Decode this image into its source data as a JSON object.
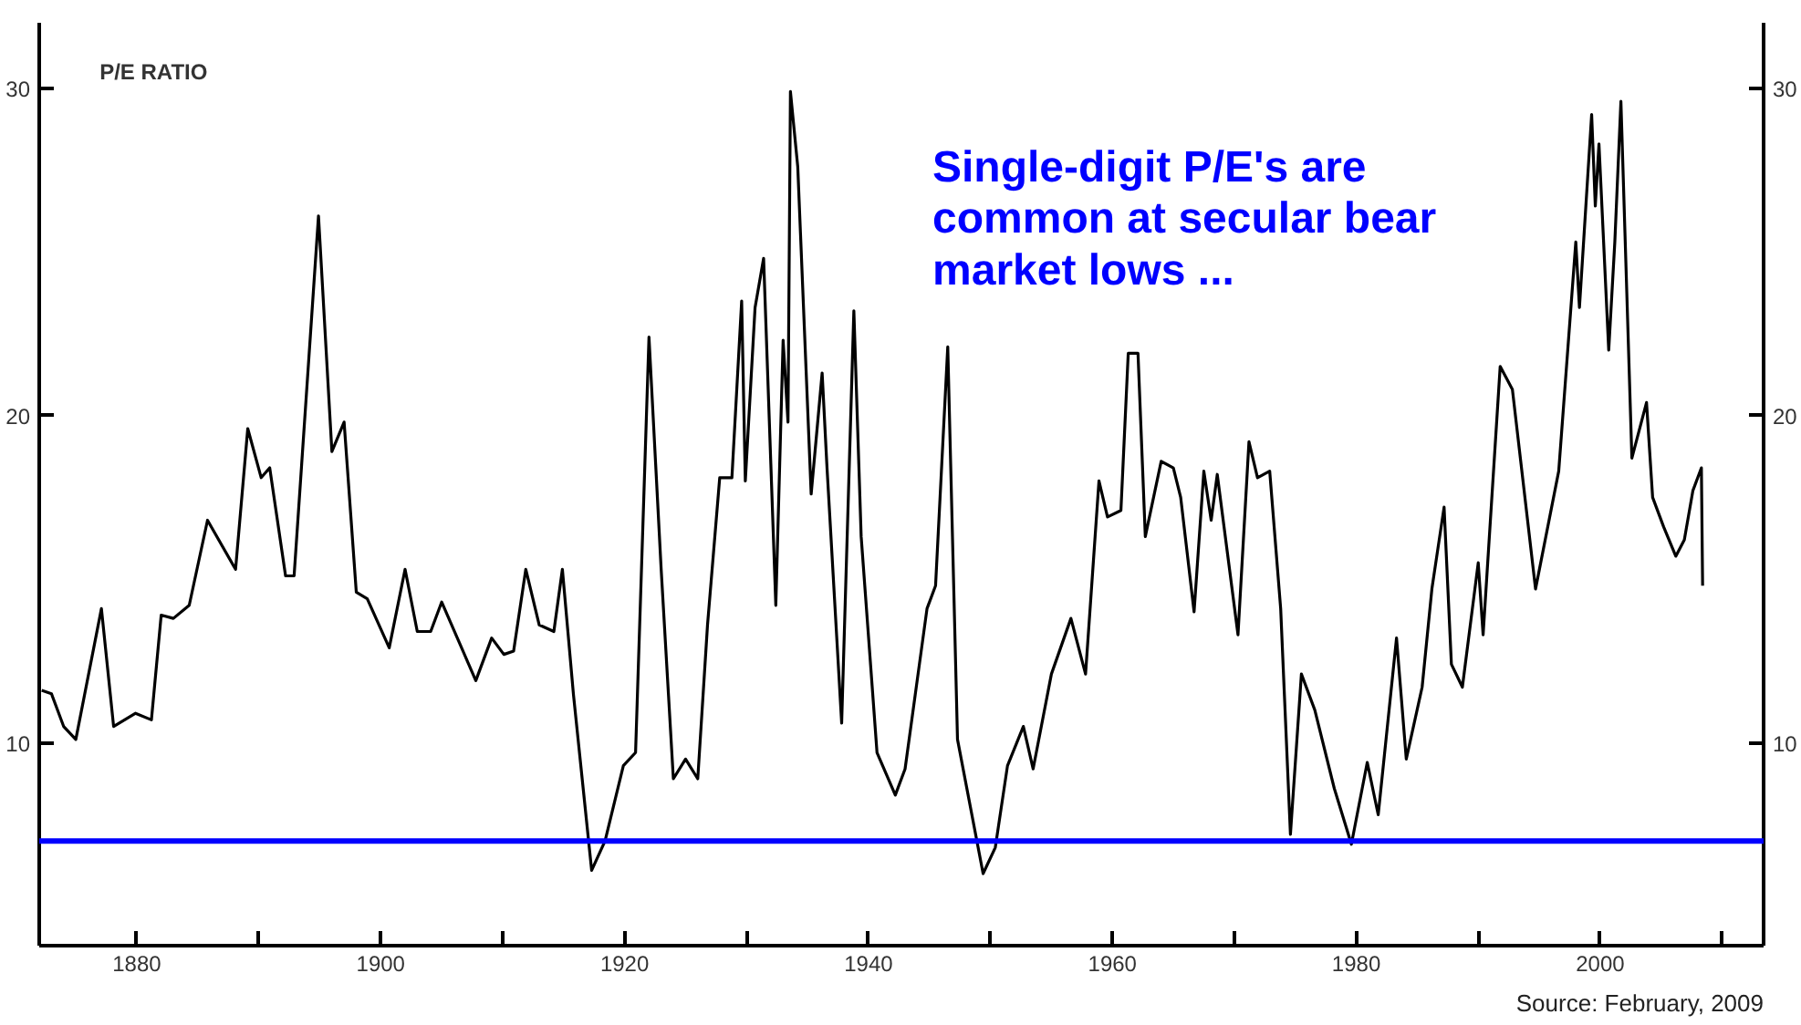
{
  "chart_data": {
    "type": "line",
    "title": "P/E RATIO",
    "annotations": [
      "Single-digit P/E's are\ncommon at secular bear\nmarket lows ...",
      "Source: February, 2009"
    ],
    "xlim": [
      1872,
      2013.4
    ],
    "xticks": [
      1880,
      {
        "value": 1890,
        "label": null
      },
      1900,
      {
        "value": 1910,
        "label": null
      },
      1920,
      {
        "value": 1930,
        "label": null
      },
      1940,
      {
        "value": 1950,
        "label": null
      },
      1960,
      {
        "value": 1970,
        "label": null
      },
      1980,
      {
        "value": 1990,
        "label": null
      },
      2000,
      {
        "value": 2010,
        "label": null
      }
    ],
    "ylim": [
      3.8,
      32
    ],
    "yticks": [
      10,
      20,
      30
    ],
    "y2lim": [
      3.8,
      32
    ],
    "y2ticks": [
      10,
      20,
      30
    ],
    "ref_lines": [
      {
        "axis": "y",
        "value": 7,
        "label": null,
        "color": "#0000ff"
      }
    ],
    "series": [
      {
        "color": "#000000",
        "x": [
          1872.2,
          1873.0,
          1874.0,
          1875.0,
          1877.1,
          1878.1,
          1879.9,
          1881.2,
          1882.0,
          1883.0,
          1884.3,
          1885.8,
          1888.1,
          1889.1,
          1890.2,
          1890.9,
          1892.2,
          1892.9,
          1894.9,
          1896.0,
          1897.0,
          1898.0,
          1898.9,
          1900.7,
          1902.0,
          1903.0,
          1904.1,
          1905.0,
          1907.8,
          1909.1,
          1910.1,
          1910.9,
          1911.9,
          1913.0,
          1914.2,
          1914.9,
          1915.8,
          1917.3,
          1918.4,
          1919.9,
          1920.9,
          1922.0,
          1923.0,
          1924.0,
          1925.0,
          1926.0,
          1926.8,
          1927.8,
          1928.8,
          1929.6,
          1929.9,
          1930.7,
          1931.4,
          1932.4,
          1933.0,
          1933.4,
          1933.6,
          1934.2,
          1935.3,
          1936.2,
          1936.6,
          1937.8,
          1938.8,
          1939.4,
          1940.7,
          1942.2,
          1943.0,
          1944.8,
          1945.5,
          1946.5,
          1947.3,
          1949.4,
          1950.4,
          1951.4,
          1952.7,
          1953.5,
          1955.0,
          1956.6,
          1957.8,
          1958.9,
          1959.6,
          1960.7,
          1961.3,
          1962.1,
          1962.7,
          1964.0,
          1965.0,
          1965.6,
          1966.7,
          1967.5,
          1968.1,
          1968.6,
          1970.3,
          1971.2,
          1971.9,
          1972.9,
          1973.8,
          1974.6,
          1975.5,
          1976.6,
          1978.2,
          1979.6,
          1980.9,
          1981.8,
          1983.3,
          1984.1,
          1985.4,
          1986.2,
          1987.2,
          1987.8,
          1988.7,
          1990.0,
          1990.4,
          1991.8,
          1992.8,
          1994.7,
          1996.6,
          1998.0,
          1998.3,
          1999.3,
          1999.6,
          1999.9,
          2000.7,
          2001.2,
          2001.7,
          2002.6,
          2003.8,
          2004.3,
          2005.2,
          2006.2,
          2006.9,
          2007.6,
          2008.3,
          2008.4
        ],
        "values": [
          11.6,
          11.5,
          10.5,
          10.1,
          14.1,
          10.5,
          10.9,
          10.7,
          13.9,
          13.8,
          14.2,
          16.8,
          15.3,
          19.6,
          18.1,
          18.4,
          15.1,
          15.1,
          26.1,
          18.9,
          19.8,
          14.6,
          14.4,
          12.9,
          15.3,
          13.4,
          13.4,
          14.3,
          11.9,
          13.2,
          12.7,
          12.8,
          15.3,
          13.6,
          13.4,
          15.3,
          11.5,
          6.1,
          7.0,
          9.3,
          9.7,
          22.4,
          15.3,
          8.9,
          9.5,
          8.9,
          13.6,
          18.1,
          18.1,
          23.5,
          18.0,
          23.3,
          24.8,
          14.2,
          22.3,
          19.8,
          29.9,
          27.6,
          17.6,
          21.3,
          18.4,
          10.6,
          23.2,
          16.3,
          9.7,
          8.4,
          9.2,
          14.1,
          14.8,
          22.1,
          10.1,
          6.0,
          6.8,
          9.3,
          10.5,
          9.2,
          12.1,
          13.8,
          12.1,
          18.0,
          16.9,
          17.1,
          21.9,
          21.9,
          16.3,
          18.6,
          18.4,
          17.5,
          14.0,
          18.3,
          16.8,
          18.2,
          13.3,
          19.2,
          18.1,
          18.3,
          14.1,
          7.2,
          12.1,
          11.0,
          8.6,
          6.9,
          9.4,
          7.8,
          13.2,
          9.5,
          11.7,
          14.7,
          17.2,
          12.4,
          11.7,
          15.5,
          13.3,
          21.5,
          20.8,
          14.7,
          18.3,
          25.3,
          23.3,
          29.2,
          26.4,
          28.3,
          22.0,
          25.3,
          29.6,
          18.7,
          20.4,
          17.5,
          16.6,
          15.7,
          16.2,
          17.7,
          18.4,
          14.8
        ]
      }
    ]
  }
}
